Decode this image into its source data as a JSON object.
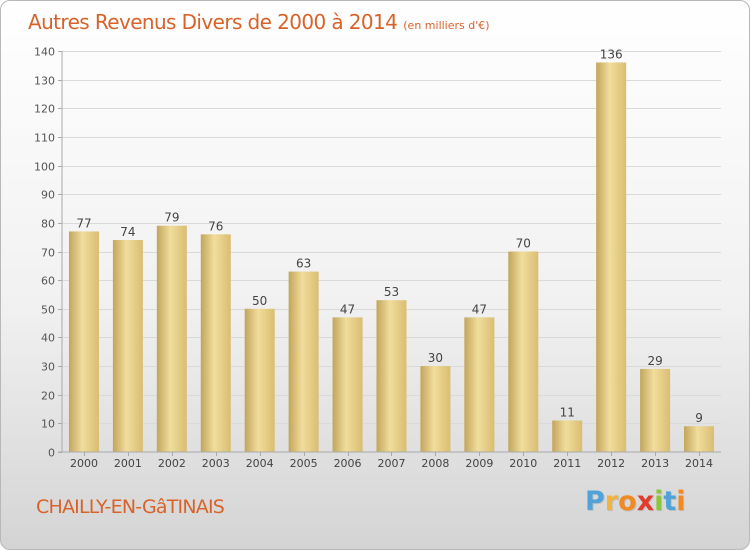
{
  "chart_data": {
    "type": "bar",
    "title": "Autres Revenus Divers de 2000 à 2014",
    "subtitle": "(en milliers d'€)",
    "categories": [
      "2000",
      "2001",
      "2002",
      "2003",
      "2004",
      "2005",
      "2006",
      "2007",
      "2008",
      "2009",
      "2010",
      "2011",
      "2012",
      "2013",
      "2014"
    ],
    "values": [
      77,
      74,
      79,
      76,
      50,
      63,
      47,
      53,
      30,
      47,
      70,
      11,
      136,
      29,
      9
    ],
    "ylim": [
      0,
      140
    ],
    "yticks": [
      0,
      10,
      20,
      30,
      40,
      50,
      60,
      70,
      80,
      90,
      100,
      110,
      120,
      130,
      140
    ],
    "grid": true,
    "legend": "none",
    "bar_color": "#e6cf86"
  },
  "footer": {
    "city": "CHAILLY-EN-GâTINAIS",
    "logo_letters": [
      "P",
      "r",
      "o",
      "x",
      "i",
      "t",
      "i"
    ],
    "logo_colors": [
      "#4fa3d8",
      "#f2b33d",
      "#f08a24",
      "#e23c2c",
      "#8fc440",
      "#4fa3d8",
      "#f08a24"
    ]
  }
}
